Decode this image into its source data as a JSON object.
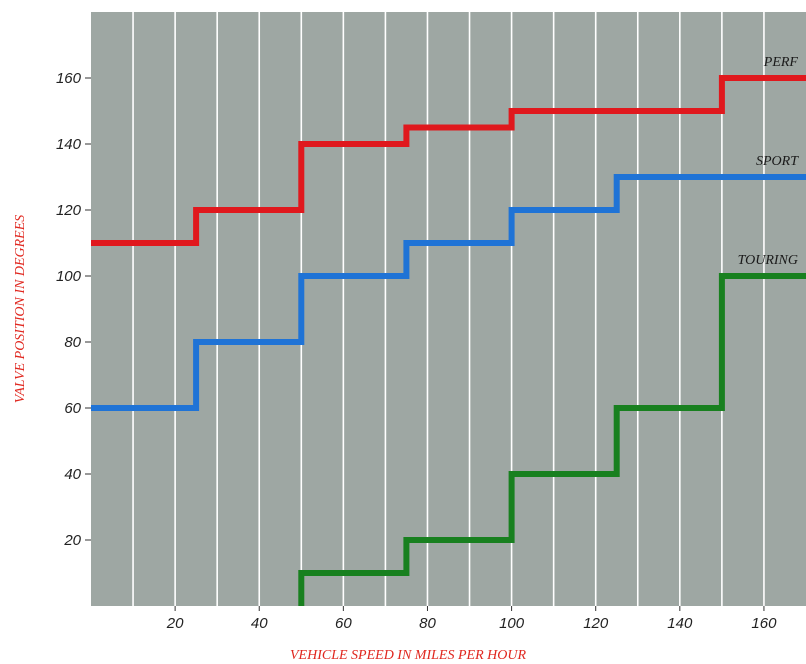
{
  "chart_data": {
    "type": "line",
    "step": true,
    "xlabel": "VEHICLE SPEED IN MILES PER HOUR",
    "ylabel": "VALVE POSITION IN DEGREES",
    "xlim": [
      0,
      170
    ],
    "ylim": [
      0,
      180
    ],
    "x_ticks": [
      20,
      40,
      60,
      80,
      100,
      120,
      140,
      160
    ],
    "y_ticks": [
      20,
      40,
      60,
      80,
      100,
      120,
      140,
      160
    ],
    "x_grid_step": 10,
    "grid": true,
    "legend": "inline labels at right end of each series",
    "colors": {
      "plot_background": "#9ea7a3",
      "grid": "#ffffff",
      "axis_title": "#e0271f"
    },
    "series": [
      {
        "name": "PERF",
        "color": "#e0181d",
        "points": [
          [
            0,
            110
          ],
          [
            25,
            110
          ],
          [
            25,
            120
          ],
          [
            50,
            120
          ],
          [
            50,
            140
          ],
          [
            75,
            140
          ],
          [
            75,
            145
          ],
          [
            100,
            145
          ],
          [
            100,
            150
          ],
          [
            150,
            150
          ],
          [
            150,
            160
          ],
          [
            170,
            160
          ]
        ]
      },
      {
        "name": "SPORT",
        "color": "#1f73d6",
        "points": [
          [
            0,
            60
          ],
          [
            25,
            60
          ],
          [
            25,
            80
          ],
          [
            50,
            80
          ],
          [
            50,
            100
          ],
          [
            75,
            100
          ],
          [
            75,
            110
          ],
          [
            100,
            110
          ],
          [
            100,
            120
          ],
          [
            125,
            120
          ],
          [
            125,
            130
          ],
          [
            170,
            130
          ]
        ]
      },
      {
        "name": "TOURING",
        "color": "#18801f",
        "points": [
          [
            50,
            0
          ],
          [
            50,
            10
          ],
          [
            75,
            10
          ],
          [
            75,
            20
          ],
          [
            100,
            20
          ],
          [
            100,
            40
          ],
          [
            125,
            40
          ],
          [
            125,
            60
          ],
          [
            150,
            60
          ],
          [
            150,
            100
          ],
          [
            170,
            100
          ]
        ]
      }
    ]
  }
}
